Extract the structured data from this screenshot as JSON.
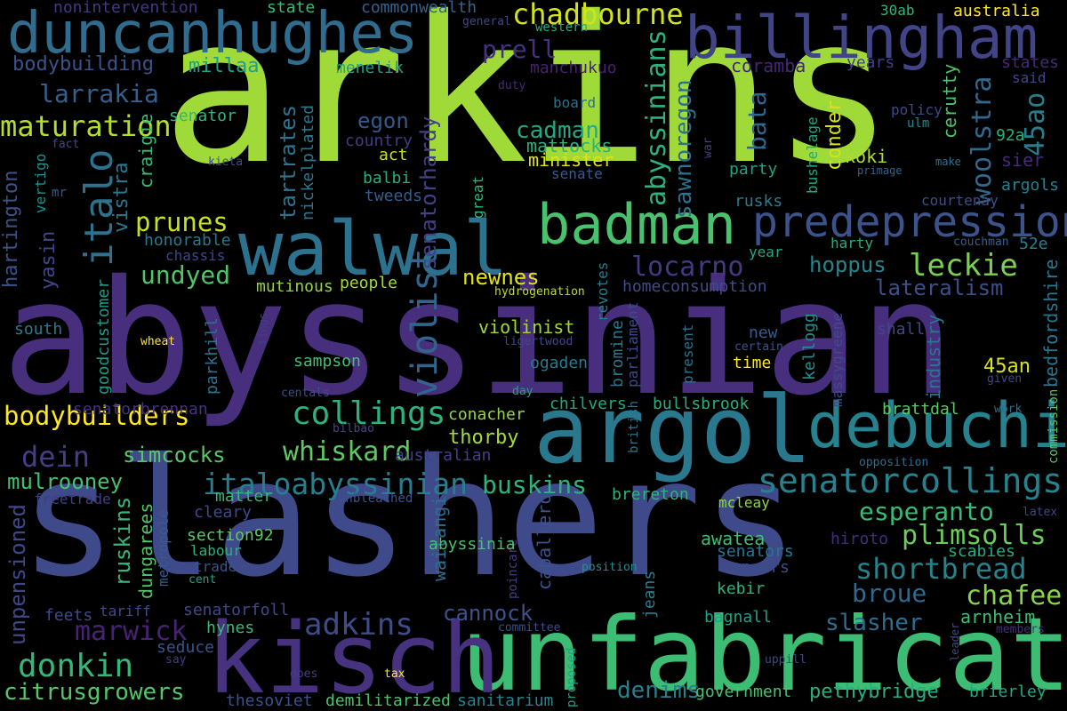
{
  "words": [
    {
      "text": "arkins",
      "color": "#a0da39"
    },
    {
      "text": "abyssinian",
      "color": "#472f7d"
    },
    {
      "text": "slashers",
      "color": "#3f4a8a"
    },
    {
      "text": "unfabricated",
      "color": "#3dbc74"
    },
    {
      "text": "kisch",
      "color": "#46327e"
    },
    {
      "text": "argol",
      "color": "#2a788e"
    },
    {
      "text": "walwal",
      "color": "#2c728e"
    },
    {
      "text": "debuchi",
      "color": "#26828e"
    },
    {
      "text": "billingham",
      "color": "#414487"
    },
    {
      "text": "duncanhughes",
      "color": "#2f6c8e"
    },
    {
      "text": "badman",
      "color": "#4ac16d"
    },
    {
      "text": "predepression",
      "color": "#3b528b"
    },
    {
      "text": "collings",
      "color": "#2db27d"
    },
    {
      "text": "senatorcollings",
      "color": "#26828e"
    },
    {
      "text": "italoabyssinian",
      "color": "#287d8e"
    },
    {
      "text": "whiskard",
      "color": "#5ec962"
    },
    {
      "text": "donkin",
      "color": "#35b779"
    },
    {
      "text": "bodybuilders",
      "color": "#fde725"
    },
    {
      "text": "maturation",
      "color": "#b5de2b"
    },
    {
      "text": "chadbourne",
      "color": "#d2e21b"
    },
    {
      "text": "prunes",
      "color": "#c8e020"
    },
    {
      "text": "italo",
      "color": "#2c728e"
    },
    {
      "text": "locarno",
      "color": "#443983"
    },
    {
      "text": "leckie",
      "color": "#7ad151"
    },
    {
      "text": "violist",
      "color": "#32658e"
    },
    {
      "text": "adkins",
      "color": "#3e4c8a"
    },
    {
      "text": "marwick",
      "color": "#482374"
    },
    {
      "text": "buskins",
      "color": "#2db27d"
    },
    {
      "text": "dein",
      "color": "#433e85"
    },
    {
      "text": "esperanto",
      "color": "#3aba76"
    },
    {
      "text": "plimsolls",
      "color": "#6ccd5a"
    },
    {
      "text": "shortbread",
      "color": "#25838e"
    },
    {
      "text": "chafee",
      "color": "#86d549"
    },
    {
      "text": "broue",
      "color": "#31688e"
    },
    {
      "text": "slasher",
      "color": "#2e6e8e"
    },
    {
      "text": "cannock",
      "color": "#3b528b"
    },
    {
      "text": "citrusgrowers",
      "color": "#54c568"
    },
    {
      "text": "undyed",
      "color": "#50c46a"
    },
    {
      "text": "hoppus",
      "color": "#25858e"
    },
    {
      "text": "lateralism",
      "color": "#3c4f8a"
    },
    {
      "text": "prell",
      "color": "#46327e"
    },
    {
      "text": "larrakia",
      "color": "#355f8d"
    },
    {
      "text": "bodybuilding",
      "color": "#3b528b"
    },
    {
      "text": "millaa",
      "color": "#1fa187"
    },
    {
      "text": "nonintervention",
      "color": "#453781"
    },
    {
      "text": "state",
      "color": "#3aba76"
    },
    {
      "text": "commonwealth",
      "color": "#33638d"
    },
    {
      "text": "australia",
      "color": "#fde725"
    },
    {
      "text": "30ab",
      "color": "#32b67a"
    },
    {
      "text": "western",
      "color": "#25ab82"
    },
    {
      "text": "general",
      "color": "#3f4889"
    },
    {
      "text": "abyssinians",
      "color": "#2db27d"
    },
    {
      "text": "coramba",
      "color": "#482576"
    },
    {
      "text": "woolstra",
      "color": "#31688e"
    },
    {
      "text": "45ao",
      "color": "#277f8e"
    },
    {
      "text": "states",
      "color": "#482878"
    },
    {
      "text": "said",
      "color": "#404688"
    },
    {
      "text": "years",
      "color": "#433e85"
    },
    {
      "text": "cerutty",
      "color": "#4ec36b"
    },
    {
      "text": "policy",
      "color": "#3f4788"
    },
    {
      "text": "ulm",
      "color": "#24868e"
    },
    {
      "text": "92a",
      "color": "#28ae80"
    },
    {
      "text": "menelik",
      "color": "#1fa088"
    },
    {
      "text": "board",
      "color": "#2c728e"
    },
    {
      "text": "manchukuo",
      "color": "#482173"
    },
    {
      "text": "duty",
      "color": "#482878"
    },
    {
      "text": "egon",
      "color": "#38588c"
    },
    {
      "text": "cadman",
      "color": "#22a884"
    },
    {
      "text": "senatorhardy",
      "color": "#424086"
    },
    {
      "text": "tartrates",
      "color": "#2c738e"
    },
    {
      "text": "nickelplated",
      "color": "#2a788e"
    },
    {
      "text": "senator",
      "color": "#31b57b"
    },
    {
      "text": "country",
      "color": "#443983"
    },
    {
      "text": "mattocks",
      "color": "#2db27d"
    },
    {
      "text": "minister",
      "color": "#dde318"
    },
    {
      "text": "senate",
      "color": "#375a8c"
    },
    {
      "text": "sawnoregon",
      "color": "#2d708e"
    },
    {
      "text": "bata",
      "color": "#31678e"
    },
    {
      "text": "conder",
      "color": "#d5e21a"
    },
    {
      "text": "koki",
      "color": "#addc30"
    },
    {
      "text": "sier",
      "color": "#482979"
    },
    {
      "text": "argols",
      "color": "#25838e"
    },
    {
      "text": "fact",
      "color": "#3e4989"
    },
    {
      "text": "vertigo",
      "color": "#21918c"
    },
    {
      "text": "mr",
      "color": "#38588c"
    },
    {
      "text": "hartington",
      "color": "#3b528b"
    },
    {
      "text": "yasin",
      "color": "#404588"
    },
    {
      "text": "craigie",
      "color": "#3aba76"
    },
    {
      "text": "vistra",
      "color": "#2a778e"
    },
    {
      "text": "act",
      "color": "#c5e021"
    },
    {
      "text": "balbi",
      "color": "#28ae80"
    },
    {
      "text": "tweeds",
      "color": "#365c8d"
    },
    {
      "text": "great",
      "color": "#34b679"
    },
    {
      "text": "war",
      "color": "#433e85"
    },
    {
      "text": "kieta",
      "color": "#3e4a89"
    },
    {
      "text": "primage",
      "color": "#33638d"
    },
    {
      "text": "make",
      "color": "#2d708e"
    },
    {
      "text": "bushelage",
      "color": "#21a685"
    },
    {
      "text": "courtenay",
      "color": "#3d4e8a"
    },
    {
      "text": "party",
      "color": "#1fa287"
    },
    {
      "text": "rusks",
      "color": "#287c8e"
    },
    {
      "text": "honorable",
      "color": "#29798e"
    },
    {
      "text": "chassis",
      "color": "#404688"
    },
    {
      "text": "harty",
      "color": "#26ad81"
    },
    {
      "text": "couchman",
      "color": "#355f8d"
    },
    {
      "text": "52e",
      "color": "#27808e"
    },
    {
      "text": "year",
      "color": "#22a884"
    },
    {
      "text": "revotes",
      "color": "#287c8e"
    },
    {
      "text": "newnes",
      "color": "#e2e418"
    },
    {
      "text": "hydrogenation",
      "color": "#bddf26"
    },
    {
      "text": "people",
      "color": "#a2da37"
    },
    {
      "text": "mutinous",
      "color": "#90d743"
    },
    {
      "text": "homeconsumption",
      "color": "#3e4c8a"
    },
    {
      "text": "bedfordshire",
      "color": "#2a768e"
    },
    {
      "text": "massygreene",
      "color": "#3e4c8a"
    },
    {
      "text": "kellogg",
      "color": "#20928c"
    },
    {
      "text": "industry",
      "color": "#2a768e"
    },
    {
      "text": "45an",
      "color": "#d8e219"
    },
    {
      "text": "shall",
      "color": "#3f4889"
    },
    {
      "text": "new",
      "color": "#375b8d"
    },
    {
      "text": "certain",
      "color": "#3b528b"
    },
    {
      "text": "time",
      "color": "#fde725"
    },
    {
      "text": "present",
      "color": "#2c718e"
    },
    {
      "text": "parliament",
      "color": "#3e4a89"
    },
    {
      "text": "british",
      "color": "#2c728e"
    },
    {
      "text": "bromine",
      "color": "#2a778e"
    },
    {
      "text": "ligertwood",
      "color": "#3f4889"
    },
    {
      "text": "violinist",
      "color": "#a0da39"
    },
    {
      "text": "ogaden",
      "color": "#2a788e"
    },
    {
      "text": "south",
      "color": "#2a788e"
    },
    {
      "text": "goodcustomer",
      "color": "#1e9c89"
    },
    {
      "text": "wheat",
      "color": "#fde725"
    },
    {
      "text": "lings",
      "color": "#433e85"
    },
    {
      "text": "parkhill",
      "color": "#2d718e"
    },
    {
      "text": "sampson",
      "color": "#44bf70"
    },
    {
      "text": "centals",
      "color": "#3d4d8a"
    },
    {
      "text": "day",
      "color": "#1fa188"
    },
    {
      "text": "given",
      "color": "#3e4989"
    },
    {
      "text": "commission",
      "color": "#58c765"
    },
    {
      "text": "work",
      "color": "#2f6c8e"
    },
    {
      "text": "brattdal",
      "color": "#5cc863"
    },
    {
      "text": "bullsbrook",
      "color": "#29af7f"
    },
    {
      "text": "chilvers",
      "color": "#22a785"
    },
    {
      "text": "conacher",
      "color": "#8fd744"
    },
    {
      "text": "thorby",
      "color": "#a5db36"
    },
    {
      "text": "senatorbrennan",
      "color": "#46317e"
    },
    {
      "text": "bilbao",
      "color": "#404688"
    },
    {
      "text": "simcocks",
      "color": "#57c766"
    },
    {
      "text": "australian",
      "color": "#433e85"
    },
    {
      "text": "opposition",
      "color": "#2f6b8e"
    },
    {
      "text": "mulrooney",
      "color": "#46c06f"
    },
    {
      "text": "freetrade",
      "color": "#433d84"
    },
    {
      "text": "unpensioned",
      "color": "#3f4788"
    },
    {
      "text": "ruskins",
      "color": "#35b779"
    },
    {
      "text": "dungarees",
      "color": "#54c568"
    },
    {
      "text": "metropole",
      "color": "#365c8d"
    },
    {
      "text": "matter",
      "color": "#38b977"
    },
    {
      "text": "cleary",
      "color": "#3e4989"
    },
    {
      "text": "unbleached",
      "color": "#3b528b"
    },
    {
      "text": "waitangi",
      "color": "#2e6f8e"
    },
    {
      "text": "abyssinia",
      "color": "#48c16e"
    },
    {
      "text": "caballero",
      "color": "#3b528b"
    },
    {
      "text": "brereton",
      "color": "#2eb37c"
    },
    {
      "text": "mcleay",
      "color": "#8ed645"
    },
    {
      "text": "latex",
      "color": "#404688"
    },
    {
      "text": "section92",
      "color": "#5cc863"
    },
    {
      "text": "labour",
      "color": "#2ab07f"
    },
    {
      "text": "trade",
      "color": "#3b528b"
    },
    {
      "text": "cent",
      "color": "#20a386"
    },
    {
      "text": "poincare",
      "color": "#443a83"
    },
    {
      "text": "position",
      "color": "#218f8d"
    },
    {
      "text": "awatea",
      "color": "#3fbc73"
    },
    {
      "text": "senators",
      "color": "#2b748e"
    },
    {
      "text": "veneers",
      "color": "#3e4c8a"
    },
    {
      "text": "hiroto",
      "color": "#472c7a"
    },
    {
      "text": "scabies",
      "color": "#25ab82"
    },
    {
      "text": "jeans",
      "color": "#287d8e"
    },
    {
      "text": "kebir",
      "color": "#2db27d"
    },
    {
      "text": "feets",
      "color": "#3e4989"
    },
    {
      "text": "tariff",
      "color": "#3e4c8a"
    },
    {
      "text": "senatorfoll",
      "color": "#3e4989"
    },
    {
      "text": "bagnall",
      "color": "#1fa088"
    },
    {
      "text": "hynes",
      "color": "#38b977"
    },
    {
      "text": "committee",
      "color": "#3d4e8a"
    },
    {
      "text": "seduce",
      "color": "#3b528b"
    },
    {
      "text": "say",
      "color": "#433e85"
    },
    {
      "text": "arnheim",
      "color": "#3dbc74"
    },
    {
      "text": "members",
      "color": "#46327e"
    },
    {
      "text": "leader",
      "color": "#3e4989"
    },
    {
      "text": "uppill",
      "color": "#3e4989"
    },
    {
      "text": "proposed",
      "color": "#1fa188"
    },
    {
      "text": "denims",
      "color": "#27808e"
    },
    {
      "text": "government",
      "color": "#48c16e"
    },
    {
      "text": "pethybridge",
      "color": "#29af7f"
    },
    {
      "text": "brierley",
      "color": "#22a785"
    },
    {
      "text": "thesoviet",
      "color": "#3b528b"
    },
    {
      "text": "demilitarized",
      "color": "#4ac16d"
    },
    {
      "text": "sanitarium",
      "color": "#25858e"
    },
    {
      "text": "does",
      "color": "#433e85"
    },
    {
      "text": "tax",
      "color": "#fde725"
    }
  ]
}
